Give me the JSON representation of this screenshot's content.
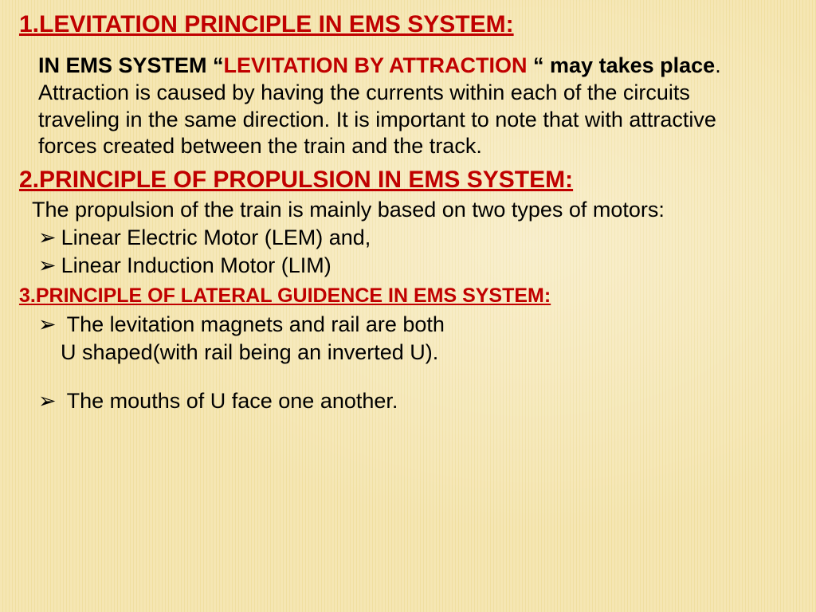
{
  "colors": {
    "heading_red": "#c00000",
    "body_black": "#000000",
    "bg_light": "#f8edc2",
    "bg_mid": "#f3e3a8",
    "bg_stripe_a": "#f5e6b3",
    "bg_stripe_b": "#f0dfa0"
  },
  "typography": {
    "heading_fontsize": 30,
    "subheading_fontsize": 25,
    "body_fontsize": 27,
    "font_family": "Arial"
  },
  "sections": [
    {
      "heading": "1.LEVITATION PRINCIPLE IN EMS SYSTEM:",
      "intro_prefix": "IN EMS SYSTEM “",
      "intro_highlight": "LEVITATION BY ATTRACTION ",
      "intro_suffix": "“ may takes place",
      "intro_dot": ".",
      "body": "Attraction is caused by having the currents within each of the circuits traveling in the same direction. It is important to note that with attractive forces created between the train and the track."
    },
    {
      "heading": "2.PRINCIPLE OF PROPULSION IN EMS SYSTEM:",
      "body": "The propulsion of the train is mainly based on two types of motors:",
      "bullets": [
        "Linear Electric Motor (LEM) and,",
        "Linear Induction Motor (LIM)"
      ]
    },
    {
      "heading": "3.PRINCIPLE OF LATERAL GUIDENCE IN EMS SYSTEM:",
      "bullets": [
        {
          "line1": "The levitation magnets and rail are both",
          "line2": "U shaped(with rail being an inverted U)."
        },
        {
          "line1": "The mouths of U face one another",
          "line2": ""
        }
      ],
      "trailing_dot": "."
    }
  ]
}
